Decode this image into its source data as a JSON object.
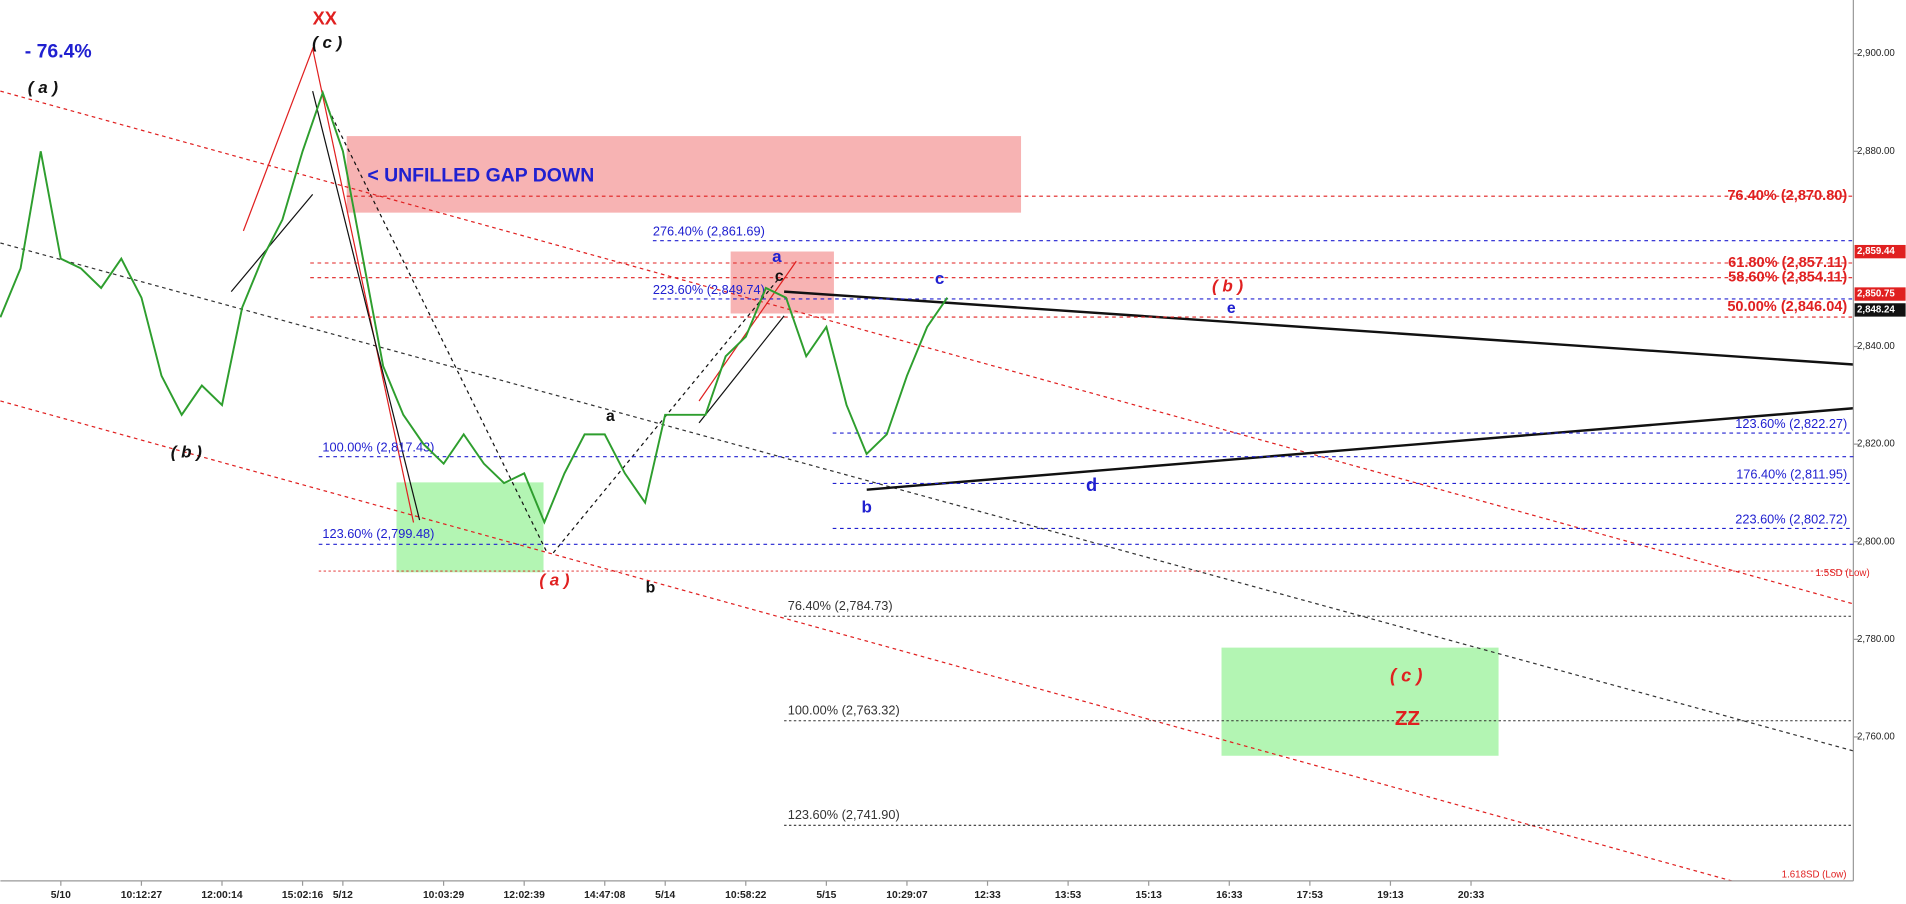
{
  "chart_data": {
    "type": "line",
    "categories": [
      null,
      null,
      null,
      "5/10",
      null,
      null,
      null,
      "10:12:27",
      null,
      null,
      null,
      "12:00:14",
      null,
      null,
      null,
      "15:02:16",
      null,
      "5/12",
      null,
      null,
      null,
      null,
      "10:03:29",
      null,
      null,
      null,
      "12:02:39",
      null,
      null,
      null,
      "14:47:08",
      null,
      null,
      "5/14",
      null,
      null,
      null,
      "10:58:22",
      null,
      null,
      null,
      "5/15",
      null,
      null,
      null,
      "10:29:07",
      null,
      null,
      null,
      "12:33",
      null,
      null,
      null,
      "13:53",
      null,
      null,
      null,
      "15:13",
      null,
      null,
      null,
      "16:33",
      null,
      null,
      null,
      "17:53",
      null,
      null,
      null,
      "19:13",
      null,
      null,
      null,
      "20:33",
      null,
      null,
      null,
      null,
      null,
      null,
      null,
      null,
      null,
      null,
      null,
      null,
      null,
      null,
      null,
      null,
      null,
      null
    ],
    "series": [
      {
        "color": "#2e9e2e",
        "values": [
          2846,
          2856,
          2880,
          2858,
          2856,
          2852,
          2858,
          2850,
          2834,
          2826,
          2832,
          2828,
          2848,
          2858,
          2866,
          2880,
          2892,
          2880,
          2858,
          2836,
          2826,
          2820,
          2816,
          2822,
          2816,
          2812,
          2814,
          2804,
          2814,
          2822,
          2822,
          2814,
          2808,
          2826,
          2826,
          2826,
          2838,
          2842,
          2852,
          2850,
          2838,
          2844,
          2828,
          2818,
          2822,
          2834,
          2844,
          2850,
          null,
          null,
          null,
          null,
          null,
          null,
          null,
          null,
          null,
          null,
          null,
          null,
          null,
          null,
          null,
          null,
          null,
          null,
          null,
          null,
          null,
          null,
          null,
          null,
          null,
          null,
          null,
          null,
          null,
          null,
          null,
          null,
          null,
          null,
          null,
          null,
          null,
          null,
          null,
          null,
          null,
          null,
          null,
          null
        ]
      }
    ],
    "ylim": [
      2731,
      2911
    ],
    "yticks": [
      {
        "value": 2760,
        "label": "2,760.00"
      },
      {
        "value": 2780,
        "label": "2,780.00"
      },
      {
        "value": 2800,
        "label": "2,800.00"
      },
      {
        "value": 2820,
        "label": "2,820.00"
      },
      {
        "value": 2840,
        "label": "2,840.00"
      },
      {
        "value": 2880,
        "label": "2,880.00"
      },
      {
        "value": 2900,
        "label": "2,900.00"
      }
    ],
    "grid": false,
    "levels": [
      {
        "value": 2870.8,
        "label": "76.40% (2,870.80)",
        "color": "#e02020"
      },
      {
        "value": 2857.11,
        "label": "61.80% (2,857.11)",
        "color": "#e02020"
      },
      {
        "value": 2854.11,
        "label": "58.60% (2,854.11)",
        "color": "#e02020"
      },
      {
        "value": 2846.04,
        "label": "50.00% (2,846.04)",
        "color": "#e02020"
      },
      {
        "value": 2861.69,
        "label": "276.40% (2,861.69)",
        "color": "#2020d0"
      },
      {
        "value": 2849.74,
        "label": "223.60% (2,849.74)",
        "color": "#2020d0"
      },
      {
        "value": 2817.43,
        "label": "100.00% (2,817.43)",
        "color": "#2020d0"
      },
      {
        "value": 2799.48,
        "label": "123.60% (2,799.48)",
        "color": "#2020d0"
      },
      {
        "value": 2822.27,
        "label": "123.60% (2,822.27)",
        "color": "#2020d0"
      },
      {
        "value": 2811.95,
        "label": "176.40% (2,811.95)",
        "color": "#2020d0"
      },
      {
        "value": 2802.72,
        "label": "223.60% (2,802.72)",
        "color": "#2020d0"
      },
      {
        "value": 2784.73,
        "label": "76.40% (2,784.73)",
        "color": "#333333"
      },
      {
        "value": 2763.32,
        "label": "100.00% (2,763.32)",
        "color": "#333333"
      },
      {
        "value": 2741.9,
        "label": "123.60% (2,741.90)",
        "color": "#333333"
      }
    ],
    "price_badges": [
      {
        "value": 2859.44,
        "label": "2,859.44",
        "color": "#e02020"
      },
      {
        "value": 2850.75,
        "label": "2,850.75",
        "color": "#e02020"
      },
      {
        "value": 2848.24,
        "label": "2,848.24",
        "color": "#111111"
      }
    ],
    "annotations": [
      {
        "text": "- 76.4%",
        "color": "#2020d0"
      },
      {
        "text": "( a )",
        "color": "#111111"
      },
      {
        "text": "XX",
        "color": "#e02020"
      },
      {
        "text": "( c )",
        "color": "#111111"
      },
      {
        "text": "( b )",
        "color": "#111111"
      },
      {
        "text": "< UNFILLED GAP DOWN",
        "color": "#2020d0"
      },
      {
        "text": "a",
        "color": "#2020d0"
      },
      {
        "text": "c",
        "color": "#111111"
      },
      {
        "text": "c",
        "color": "#2020d0"
      },
      {
        "text": "( b )",
        "color": "#e02020"
      },
      {
        "text": "e",
        "color": "#2020d0"
      },
      {
        "text": "a",
        "color": "#111111"
      },
      {
        "text": "d",
        "color": "#2020d0"
      },
      {
        "text": "b",
        "color": "#2020d0"
      },
      {
        "text": "( a )",
        "color": "#e02020"
      },
      {
        "text": "b",
        "color": "#111111"
      },
      {
        "text": "( c )",
        "color": "#e02020"
      },
      {
        "text": "ZZ",
        "color": "#e02020"
      },
      {
        "text": "1.5SD (Low)",
        "color": "#e02020"
      },
      {
        "text": "1.618SD (Low)",
        "color": "#e02020"
      }
    ]
  }
}
